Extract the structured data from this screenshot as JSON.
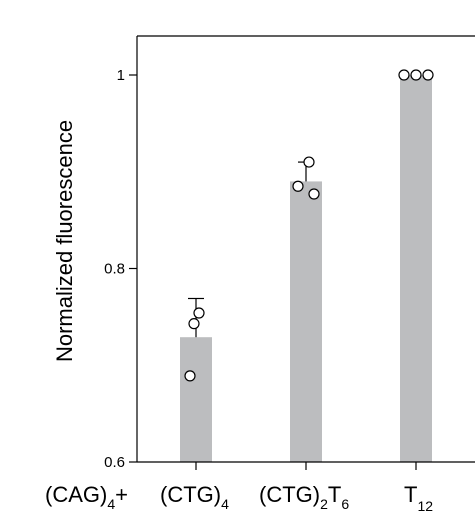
{
  "chart_data": {
    "type": "bar",
    "ylabel": "Normalized fluorescence",
    "ylim": [
      0.6,
      1.04
    ],
    "yticks": [
      {
        "value": 0.6,
        "label": "0.6"
      },
      {
        "value": 0.8,
        "label": "0.8"
      },
      {
        "value": 1.0,
        "label": "1"
      }
    ],
    "categories": [
      {
        "prefix": "(CAG)",
        "prefix_sub": "4",
        "prefix_suffix": "+",
        "main": "(CTG)",
        "main_sub": "4",
        "tail": "",
        "tail_sub": ""
      },
      {
        "prefix": "",
        "prefix_sub": "",
        "prefix_suffix": "",
        "main": "(CTG)",
        "main_sub": "2",
        "tail": "T",
        "tail_sub": "6"
      },
      {
        "prefix": "",
        "prefix_sub": "",
        "prefix_suffix": "",
        "main": "T",
        "main_sub": "12",
        "tail": "",
        "tail_sub": ""
      }
    ],
    "values": [
      0.729,
      0.89,
      1.0
    ],
    "error_upper": [
      0.769,
      0.91,
      1.0
    ],
    "points": [
      [
        0.754,
        0.743,
        0.689
      ],
      [
        0.91,
        0.885,
        0.877
      ],
      [
        1.0,
        1.0,
        1.0
      ]
    ],
    "bar_color": "#bcbdbf"
  }
}
